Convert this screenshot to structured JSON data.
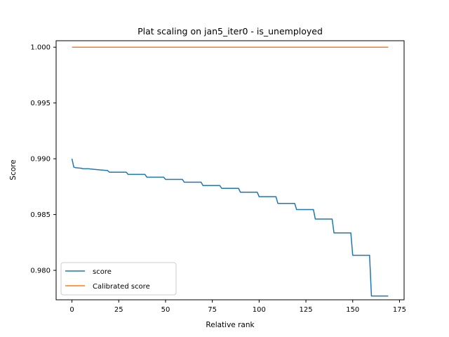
{
  "chart_data": {
    "type": "line",
    "title": "Plat scaling on jan5_iter0 - is_unemployed",
    "xlabel": "Relative rank",
    "ylabel": "Score",
    "xlim": [
      -8.45,
      177.45
    ],
    "ylim": [
      0.97736,
      1.00058
    ],
    "xticks": [
      0,
      25,
      50,
      75,
      100,
      125,
      150,
      175
    ],
    "yticks": [
      0.98,
      0.985,
      0.99,
      0.995,
      1.0
    ],
    "ytick_labels": [
      "0.980",
      "0.985",
      "0.990",
      "0.995",
      "1.000"
    ],
    "grid": false,
    "legend_position": "lower-left",
    "series": [
      {
        "name": "score",
        "color": "#1f77b4",
        "points": [
          [
            0,
            0.99
          ],
          [
            1,
            0.98925
          ],
          [
            2,
            0.9892
          ],
          [
            5,
            0.98915
          ],
          [
            6,
            0.9891
          ],
          [
            9,
            0.9891
          ],
          [
            15,
            0.989
          ],
          [
            19,
            0.98895
          ],
          [
            20,
            0.9888
          ],
          [
            29,
            0.9888
          ],
          [
            30,
            0.9886
          ],
          [
            39,
            0.9886
          ],
          [
            40,
            0.98835
          ],
          [
            49,
            0.98835
          ],
          [
            50,
            0.98815
          ],
          [
            59,
            0.98815
          ],
          [
            60,
            0.9879
          ],
          [
            69,
            0.9879
          ],
          [
            70,
            0.9876
          ],
          [
            79,
            0.9876
          ],
          [
            80,
            0.98735
          ],
          [
            89,
            0.98735
          ],
          [
            90,
            0.987
          ],
          [
            99,
            0.987
          ],
          [
            100,
            0.9866
          ],
          [
            109,
            0.9866
          ],
          [
            110,
            0.986
          ],
          [
            119,
            0.986
          ],
          [
            120,
            0.98545
          ],
          [
            129,
            0.98545
          ],
          [
            130,
            0.9846
          ],
          [
            139,
            0.9846
          ],
          [
            140,
            0.98335
          ],
          [
            149,
            0.98335
          ],
          [
            150,
            0.98135
          ],
          [
            159,
            0.98135
          ],
          [
            160,
            0.9777
          ],
          [
            169,
            0.9777
          ]
        ]
      },
      {
        "name": "Calibrated score",
        "color": "#ff7f0e",
        "points": [
          [
            0,
            1.0
          ],
          [
            169,
            1.0
          ]
        ]
      }
    ]
  }
}
